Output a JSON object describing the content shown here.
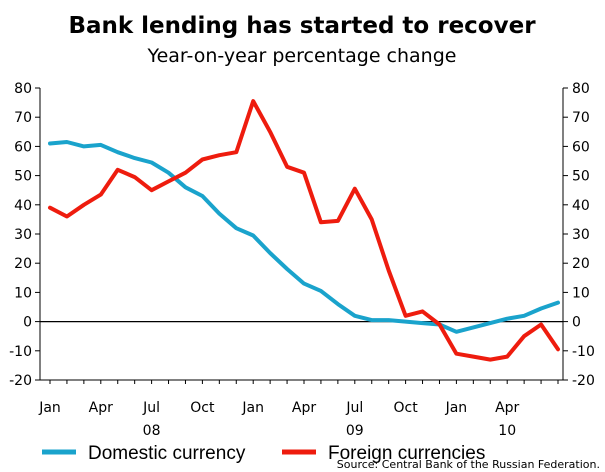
{
  "chart_data": {
    "type": "line",
    "title": "Bank lending has started to recover",
    "subtitle": "Year-on-year percentage change",
    "source": "Source: Central Bank of the Russian Federation.",
    "ylim": [
      -20,
      80
    ],
    "yticks": [
      -20,
      -10,
      0,
      10,
      20,
      30,
      40,
      50,
      60,
      70,
      80
    ],
    "ytick_labels": [
      "-20",
      "-10",
      "0",
      "10",
      "20",
      "30",
      "40",
      "50",
      "60",
      "70",
      "80"
    ],
    "x_tick_months": [
      "Jan",
      "Apr",
      "Jul",
      "Oct",
      "Jan",
      "Apr",
      "Jul",
      "Oct",
      "Jan",
      "Apr"
    ],
    "x_tick_years": [
      "08",
      "09",
      "10"
    ],
    "x_tick_positions": [
      0,
      3,
      6,
      9,
      12,
      15,
      18,
      21,
      24,
      27
    ],
    "x_year_positions": [
      6,
      18,
      27
    ],
    "grid": false,
    "legend_position": "bottom",
    "series": [
      {
        "name": "Domestic currency",
        "color": "#1aa3cc",
        "values": [
          61,
          61.5,
          60,
          60.5,
          58,
          56,
          54.5,
          51,
          46,
          43,
          37,
          32,
          29.5,
          23.5,
          18,
          13,
          10.5,
          6,
          2,
          0.5,
          0.5,
          0,
          -0.5,
          -1,
          -3.5,
          -2,
          -0.5,
          1,
          2,
          4.5,
          6.5
        ]
      },
      {
        "name": "Foreign currencies",
        "color": "#ee1c0e",
        "values": [
          39,
          36,
          40,
          43.5,
          52,
          49.5,
          45,
          48,
          51,
          55.5,
          57,
          58,
          75.5,
          65,
          53,
          51,
          34,
          34.5,
          45.5,
          35,
          17.5,
          2,
          3.5,
          -1,
          -11,
          -12,
          -13,
          -12,
          -5,
          -1,
          -9.5
        ]
      }
    ]
  }
}
